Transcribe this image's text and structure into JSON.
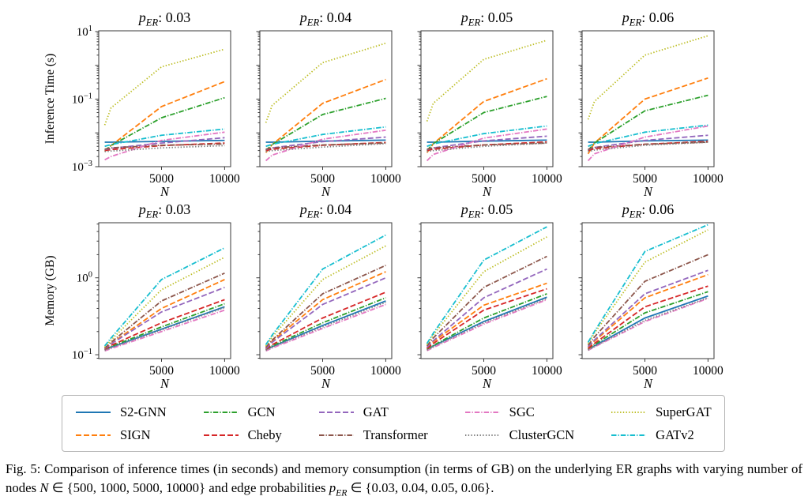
{
  "figure_caption": {
    "segments": [
      {
        "text": "Fig. 5: Comparison of inference times (in seconds) and memory consumption (in terms of GB) on the underlying ER graphs with varying number of nodes ",
        "style": "normal"
      },
      {
        "text": "N",
        "style": "math"
      },
      {
        "text": " ∈ {500, 1000, 5000, 10000} and edge probabilities ",
        "style": "normal"
      },
      {
        "text": "p",
        "style": "math"
      },
      {
        "text": "ER",
        "style": "math-sub"
      },
      {
        "text": " ∈ {0.03, 0.04, 0.05, 0.06}.",
        "style": "normal"
      }
    ]
  },
  "axes": {
    "x_label": "N",
    "x_ticks": [
      5000,
      10000
    ],
    "x_tick_labels": [
      "5000",
      "10000"
    ],
    "xlim": [
      25,
      10475
    ],
    "rows": [
      {
        "ylabel": "Inference Time (s)",
        "yscale": "log",
        "ylim": [
          0.001,
          10.5
        ],
        "labeled_exponents": [
          1,
          -1,
          -3
        ]
      },
      {
        "ylabel": "Memory (GB)",
        "yscale": "log",
        "ylim": [
          0.089,
          5.2
        ],
        "labeled_exponents": [
          0,
          -1
        ]
      }
    ]
  },
  "series_styles": [
    {
      "name": "S2-GNN",
      "color": "#1f77b4",
      "dash": "solid"
    },
    {
      "name": "SIGN",
      "color": "#ff7f0e",
      "dash": "dashed"
    },
    {
      "name": "GCN",
      "color": "#2ca02c",
      "dash": "dashdot"
    },
    {
      "name": "Cheby",
      "color": "#d62728",
      "dash": "dashed"
    },
    {
      "name": "GAT",
      "color": "#9467bd",
      "dash": "dashed"
    },
    {
      "name": "Transformer",
      "color": "#8c564b",
      "dash": "dashdot"
    },
    {
      "name": "SGC",
      "color": "#e377c2",
      "dash": "dashdot"
    },
    {
      "name": "ClusterGCN",
      "color": "#7f7f7f",
      "dash": "dotted"
    },
    {
      "name": "SuperGAT",
      "color": "#bcbd22",
      "dash": "dotted"
    },
    {
      "name": "GATv2",
      "color": "#17becf",
      "dash": "dashdot"
    }
  ],
  "legend_columns": [
    [
      "S2-GNN",
      "SIGN"
    ],
    [
      "GCN",
      "Cheby"
    ],
    [
      "GAT",
      "Transformer"
    ],
    [
      "SGC",
      "ClusterGCN"
    ],
    [
      "SuperGAT",
      "GATv2"
    ]
  ],
  "chart_data": [
    {
      "type": "line",
      "row": 0,
      "title": {
        "var": "p",
        "sub": "ER",
        "value": "0.03",
        "label": "p_ER: 0.03"
      },
      "xlabel": "N",
      "ylabel": "Inference Time (s)",
      "xscale": "linear",
      "yscale": "log",
      "x": [
        500,
        1000,
        5000,
        10000
      ],
      "ylim": [
        0.001,
        10.5
      ],
      "series": [
        {
          "name": "S2-GNN",
          "values": [
            0.0053,
            0.0053,
            0.0056,
            0.006
          ]
        },
        {
          "name": "SIGN",
          "values": [
            0.0028,
            0.0042,
            0.06,
            0.33
          ]
        },
        {
          "name": "GCN",
          "values": [
            0.003,
            0.0042,
            0.028,
            0.11
          ]
        },
        {
          "name": "Cheby",
          "values": [
            0.003,
            0.0032,
            0.0042,
            0.005
          ]
        },
        {
          "name": "GAT",
          "values": [
            0.0032,
            0.0035,
            0.005,
            0.0072
          ]
        },
        {
          "name": "Transformer",
          "values": [
            0.0033,
            0.0036,
            0.0043,
            0.0047
          ]
        },
        {
          "name": "SGC",
          "values": [
            0.0016,
            0.002,
            0.006,
            0.0105
          ]
        },
        {
          "name": "ClusterGCN",
          "values": [
            0.0028,
            0.0029,
            0.0036,
            0.0042
          ]
        },
        {
          "name": "SuperGAT",
          "values": [
            0.017,
            0.055,
            0.9,
            3.0
          ]
        },
        {
          "name": "GATv2",
          "values": [
            0.004,
            0.0045,
            0.0085,
            0.013
          ]
        }
      ]
    },
    {
      "type": "line",
      "row": 0,
      "title": {
        "var": "p",
        "sub": "ER",
        "value": "0.04",
        "label": "p_ER: 0.04"
      },
      "xlabel": "N",
      "ylabel": "Inference Time (s)",
      "xscale": "linear",
      "yscale": "log",
      "x": [
        500,
        1000,
        5000,
        10000
      ],
      "ylim": [
        0.001,
        10.5
      ],
      "series": [
        {
          "name": "S2-GNN",
          "values": [
            0.0053,
            0.0053,
            0.0057,
            0.0061
          ]
        },
        {
          "name": "SIGN",
          "values": [
            0.0026,
            0.0045,
            0.075,
            0.38
          ]
        },
        {
          "name": "GCN",
          "values": [
            0.003,
            0.0045,
            0.035,
            0.105
          ]
        },
        {
          "name": "Cheby",
          "values": [
            0.003,
            0.0033,
            0.0043,
            0.0052
          ]
        },
        {
          "name": "GAT",
          "values": [
            0.0032,
            0.0036,
            0.0055,
            0.0075
          ]
        },
        {
          "name": "Transformer",
          "values": [
            0.0033,
            0.0036,
            0.0044,
            0.005
          ]
        },
        {
          "name": "SGC",
          "values": [
            0.0015,
            0.0022,
            0.0065,
            0.012
          ]
        },
        {
          "name": "ClusterGCN",
          "values": [
            0.0028,
            0.003,
            0.0038,
            0.0048
          ]
        },
        {
          "name": "SuperGAT",
          "values": [
            0.02,
            0.065,
            1.2,
            4.5
          ]
        },
        {
          "name": "GATv2",
          "values": [
            0.004,
            0.0046,
            0.009,
            0.015
          ]
        }
      ]
    },
    {
      "type": "line",
      "row": 0,
      "title": {
        "var": "p",
        "sub": "ER",
        "value": "0.05",
        "label": "p_ER: 0.05"
      },
      "xlabel": "N",
      "ylabel": "Inference Time (s)",
      "xscale": "linear",
      "yscale": "log",
      "x": [
        500,
        1000,
        5000,
        10000
      ],
      "ylim": [
        0.001,
        10.5
      ],
      "series": [
        {
          "name": "S2-GNN",
          "values": [
            0.0053,
            0.0053,
            0.0057,
            0.0061
          ]
        },
        {
          "name": "SIGN",
          "values": [
            0.0026,
            0.0048,
            0.085,
            0.4
          ]
        },
        {
          "name": "GCN",
          "values": [
            0.003,
            0.0048,
            0.04,
            0.12
          ]
        },
        {
          "name": "Cheby",
          "values": [
            0.003,
            0.0033,
            0.0044,
            0.0054
          ]
        },
        {
          "name": "GAT",
          "values": [
            0.0032,
            0.0036,
            0.0058,
            0.008
          ]
        },
        {
          "name": "Transformer",
          "values": [
            0.0033,
            0.0036,
            0.0044,
            0.005
          ]
        },
        {
          "name": "SGC",
          "values": [
            0.0015,
            0.0023,
            0.007,
            0.013
          ]
        },
        {
          "name": "ClusterGCN",
          "values": [
            0.0028,
            0.003,
            0.004,
            0.005
          ]
        },
        {
          "name": "SuperGAT",
          "values": [
            0.022,
            0.075,
            1.5,
            5.5
          ]
        },
        {
          "name": "GATv2",
          "values": [
            0.004,
            0.0047,
            0.0095,
            0.016
          ]
        }
      ]
    },
    {
      "type": "line",
      "row": 0,
      "title": {
        "var": "p",
        "sub": "ER",
        "value": "0.06",
        "label": "p_ER: 0.06"
      },
      "xlabel": "N",
      "ylabel": "Inference Time (s)",
      "xscale": "linear",
      "yscale": "log",
      "x": [
        500,
        1000,
        5000,
        10000
      ],
      "ylim": [
        0.001,
        10.5
      ],
      "series": [
        {
          "name": "S2-GNN",
          "values": [
            0.0053,
            0.0053,
            0.0058,
            0.0061
          ]
        },
        {
          "name": "SIGN",
          "values": [
            0.0024,
            0.005,
            0.1,
            0.42
          ]
        },
        {
          "name": "GCN",
          "values": [
            0.003,
            0.005,
            0.045,
            0.13
          ]
        },
        {
          "name": "Cheby",
          "values": [
            0.003,
            0.0034,
            0.0046,
            0.0056
          ]
        },
        {
          "name": "GAT",
          "values": [
            0.0032,
            0.0037,
            0.006,
            0.0085
          ]
        },
        {
          "name": "Transformer",
          "values": [
            0.0033,
            0.0037,
            0.0046,
            0.0053
          ]
        },
        {
          "name": "SGC",
          "values": [
            0.0015,
            0.0024,
            0.0075,
            0.016
          ]
        },
        {
          "name": "ClusterGCN",
          "values": [
            0.0028,
            0.0031,
            0.0043,
            0.0053
          ]
        },
        {
          "name": "SuperGAT",
          "values": [
            0.025,
            0.085,
            2.0,
            7.5
          ]
        },
        {
          "name": "GATv2",
          "values": [
            0.004,
            0.0048,
            0.0105,
            0.017
          ]
        }
      ]
    },
    {
      "type": "line",
      "row": 1,
      "title": {
        "var": "p",
        "sub": "ER",
        "value": "0.03",
        "label": "p_ER: 0.03"
      },
      "xlabel": "N",
      "ylabel": "Memory (GB)",
      "xscale": "linear",
      "yscale": "log",
      "x": [
        500,
        1000,
        5000,
        10000
      ],
      "ylim": [
        0.089,
        5.2
      ],
      "series": [
        {
          "name": "S2-GNN",
          "values": [
            0.115,
            0.125,
            0.215,
            0.42
          ]
        },
        {
          "name": "SIGN",
          "values": [
            0.12,
            0.14,
            0.4,
            0.95
          ]
        },
        {
          "name": "GCN",
          "values": [
            0.115,
            0.128,
            0.23,
            0.46
          ]
        },
        {
          "name": "Cheby",
          "values": [
            0.117,
            0.132,
            0.26,
            0.52
          ]
        },
        {
          "name": "GAT",
          "values": [
            0.12,
            0.138,
            0.36,
            0.75
          ]
        },
        {
          "name": "Transformer",
          "values": [
            0.122,
            0.145,
            0.5,
            1.15
          ]
        },
        {
          "name": "SGC",
          "values": [
            0.112,
            0.12,
            0.2,
            0.38
          ]
        },
        {
          "name": "ClusterGCN",
          "values": [
            0.114,
            0.124,
            0.21,
            0.41
          ]
        },
        {
          "name": "SuperGAT",
          "values": [
            0.125,
            0.155,
            0.7,
            1.85
          ]
        },
        {
          "name": "GATv2",
          "values": [
            0.13,
            0.165,
            0.95,
            2.45
          ]
        }
      ]
    },
    {
      "type": "line",
      "row": 1,
      "title": {
        "var": "p",
        "sub": "ER",
        "value": "0.04",
        "label": "p_ER: 0.04"
      },
      "xlabel": "N",
      "ylabel": "Memory (GB)",
      "xscale": "linear",
      "yscale": "log",
      "x": [
        500,
        1000,
        5000,
        10000
      ],
      "ylim": [
        0.089,
        5.2
      ],
      "series": [
        {
          "name": "S2-GNN",
          "values": [
            0.115,
            0.127,
            0.24,
            0.5
          ]
        },
        {
          "name": "SIGN",
          "values": [
            0.122,
            0.15,
            0.52,
            1.2
          ]
        },
        {
          "name": "GCN",
          "values": [
            0.116,
            0.13,
            0.26,
            0.55
          ]
        },
        {
          "name": "Cheby",
          "values": [
            0.118,
            0.135,
            0.3,
            0.65
          ]
        },
        {
          "name": "GAT",
          "values": [
            0.12,
            0.145,
            0.45,
            1.0
          ]
        },
        {
          "name": "Transformer",
          "values": [
            0.125,
            0.155,
            0.62,
            1.45
          ]
        },
        {
          "name": "SGC",
          "values": [
            0.112,
            0.122,
            0.22,
            0.45
          ]
        },
        {
          "name": "ClusterGCN",
          "values": [
            0.114,
            0.126,
            0.23,
            0.48
          ]
        },
        {
          "name": "SuperGAT",
          "values": [
            0.13,
            0.17,
            0.95,
            2.6
          ]
        },
        {
          "name": "GATv2",
          "values": [
            0.135,
            0.18,
            1.3,
            3.6
          ]
        }
      ]
    },
    {
      "type": "line",
      "row": 1,
      "title": {
        "var": "p",
        "sub": "ER",
        "value": "0.05",
        "label": "p_ER: 0.05"
      },
      "xlabel": "N",
      "ylabel": "Memory (GB)",
      "xscale": "linear",
      "yscale": "log",
      "x": [
        500,
        1000,
        5000,
        10000
      ],
      "ylim": [
        0.089,
        5.2
      ],
      "series": [
        {
          "name": "S2-GNN",
          "values": [
            0.116,
            0.13,
            0.27,
            0.56
          ]
        },
        {
          "name": "SIGN",
          "values": [
            0.122,
            0.148,
            0.44,
            0.85
          ]
        },
        {
          "name": "GCN",
          "values": [
            0.117,
            0.132,
            0.3,
            0.62
          ]
        },
        {
          "name": "Cheby",
          "values": [
            0.12,
            0.14,
            0.38,
            0.72
          ]
        },
        {
          "name": "GAT",
          "values": [
            0.125,
            0.152,
            0.55,
            1.3
          ]
        },
        {
          "name": "Transformer",
          "values": [
            0.13,
            0.165,
            0.75,
            1.9
          ]
        },
        {
          "name": "SGC",
          "values": [
            0.113,
            0.124,
            0.25,
            0.52
          ]
        },
        {
          "name": "ClusterGCN",
          "values": [
            0.115,
            0.128,
            0.26,
            0.54
          ]
        },
        {
          "name": "SuperGAT",
          "values": [
            0.135,
            0.18,
            1.2,
            3.4
          ]
        },
        {
          "name": "GATv2",
          "values": [
            0.14,
            0.19,
            1.7,
            4.6
          ]
        }
      ]
    },
    {
      "type": "line",
      "row": 1,
      "title": {
        "var": "p",
        "sub": "ER",
        "value": "0.06",
        "label": "p_ER: 0.06"
      },
      "xlabel": "N",
      "ylabel": "Memory (GB)",
      "xscale": "linear",
      "yscale": "log",
      "x": [
        500,
        1000,
        5000,
        10000
      ],
      "ylim": [
        0.089,
        5.2
      ],
      "series": [
        {
          "name": "S2-GNN",
          "values": [
            0.116,
            0.13,
            0.3,
            0.58
          ]
        },
        {
          "name": "SIGN",
          "values": [
            0.124,
            0.15,
            0.55,
            1.1
          ]
        },
        {
          "name": "GCN",
          "values": [
            0.118,
            0.135,
            0.35,
            0.66
          ]
        },
        {
          "name": "Cheby",
          "values": [
            0.12,
            0.14,
            0.42,
            0.78
          ]
        },
        {
          "name": "GAT",
          "values": [
            0.127,
            0.155,
            0.62,
            1.25
          ]
        },
        {
          "name": "Transformer",
          "values": [
            0.132,
            0.17,
            0.9,
            2.0
          ]
        },
        {
          "name": "SGC",
          "values": [
            0.114,
            0.126,
            0.27,
            0.54
          ]
        },
        {
          "name": "ClusterGCN",
          "values": [
            0.115,
            0.128,
            0.28,
            0.55
          ]
        },
        {
          "name": "SuperGAT",
          "values": [
            0.14,
            0.19,
            1.6,
            4.2
          ]
        },
        {
          "name": "GATv2",
          "values": [
            0.145,
            0.2,
            2.2,
            4.9
          ]
        }
      ]
    }
  ]
}
